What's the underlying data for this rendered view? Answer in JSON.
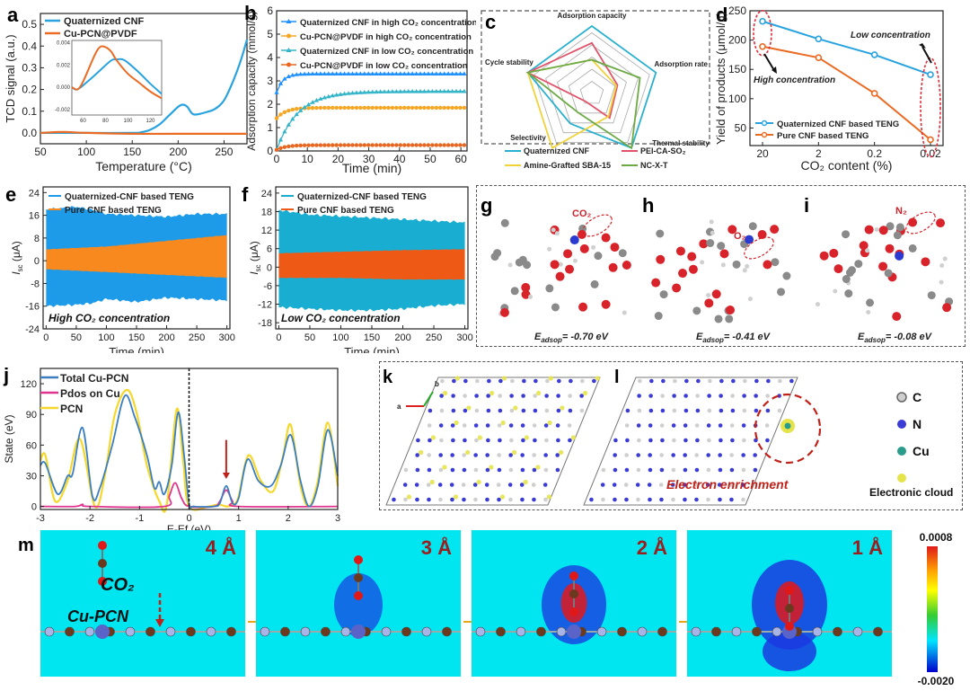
{
  "chart_data": [
    {
      "id": "a",
      "type": "line",
      "panel_label": "a",
      "xlabel": "Temperature (°C)",
      "ylabel": "TCD signal (a.u.)",
      "xlim": [
        50,
        275
      ],
      "ylim": [
        -0.05,
        0.55
      ],
      "xticks": [
        50,
        100,
        150,
        200,
        250
      ],
      "yticks": [
        0.0,
        0.1,
        0.2,
        0.3,
        0.4,
        0.5
      ],
      "legend": "top-left",
      "series": [
        {
          "name": "Quaternized CNF",
          "color": "#29a3e0",
          "x": [
            50,
            100,
            150,
            160,
            170,
            180,
            190,
            200,
            205,
            210,
            215,
            220,
            230,
            240,
            250,
            260,
            268,
            275
          ],
          "y": [
            0.0,
            0.0,
            0.0,
            0.003,
            0.015,
            0.04,
            0.08,
            0.12,
            0.13,
            0.12,
            0.09,
            0.085,
            0.095,
            0.11,
            0.15,
            0.24,
            0.33,
            0.43
          ]
        },
        {
          "name": "Cu-PCN@PVDF",
          "color": "#ea6b24",
          "x": [
            50,
            75,
            100,
            150,
            200,
            275
          ],
          "y": [
            0.0,
            0.004,
            0.0,
            -0.004,
            -0.004,
            -0.004
          ]
        }
      ],
      "inset": {
        "xlim": [
          50,
          130
        ],
        "ylim": [
          -0.0025,
          0.0042
        ],
        "xticks": [
          60,
          80,
          100,
          120
        ],
        "yticks": [
          -0.002,
          0.0,
          0.002,
          0.004
        ],
        "ytick_labels": [
          "-0.002",
          "0.000",
          "0.002",
          "0.004"
        ],
        "series": [
          {
            "name": "Quaternized CNF",
            "color": "#29a3e0",
            "x": [
              50,
              55,
              65,
              75,
              85,
              90,
              95,
              100,
              110,
              120,
              130
            ],
            "y": [
              0.0,
              -0.0002,
              0.0006,
              0.0015,
              0.0024,
              0.0025,
              0.0025,
              0.0022,
              0.0013,
              0.0003,
              -0.0006
            ]
          },
          {
            "name": "Cu-PCN@PVDF",
            "color": "#ea6b24",
            "x": [
              50,
              55,
              60,
              70,
              75,
              80,
              85,
              90,
              100,
              110,
              120,
              130
            ],
            "y": [
              0.0,
              -0.0002,
              0.0005,
              0.0028,
              0.0036,
              0.0036,
              0.0032,
              0.0024,
              0.0012,
              0.0004,
              -0.0004,
              -0.001
            ]
          }
        ]
      }
    },
    {
      "id": "b",
      "type": "line",
      "panel_label": "b",
      "xlabel": "Time (min)",
      "ylabel": "Adsorption capacity (mmol/g)",
      "xlim": [
        0,
        62
      ],
      "ylim": [
        0,
        6
      ],
      "xticks": [
        0,
        10,
        20,
        30,
        40,
        50,
        60
      ],
      "yticks": [
        0,
        1,
        2,
        3,
        4,
        5,
        6
      ],
      "legend": "top",
      "series": [
        {
          "name": "Quaternized CNF in high CO₂ concentration",
          "color": "#1e90ff",
          "marker": "triangle",
          "model": {
            "start": 2.5,
            "end": 3.3,
            "tau": 2.0
          }
        },
        {
          "name": "Cu-PCN@PVDF in high CO₂ concentration",
          "color": "#f5a623",
          "marker": "circle",
          "model": {
            "start": 1.4,
            "end": 1.85,
            "tau": 3.0
          }
        },
        {
          "name": "Quaternized CNF in low CO₂ concentration",
          "color": "#33b5c9",
          "marker": "triangle",
          "model": {
            "start": 0.05,
            "end": 2.55,
            "tau": 7.0
          }
        },
        {
          "name": "Cu-PCN@PVDF in low CO₂ concentration",
          "color": "#e8661f",
          "marker": "circle",
          "model": {
            "start": 0.05,
            "end": 0.25,
            "tau": 3.0
          }
        }
      ]
    },
    {
      "id": "c",
      "type": "radar",
      "panel_label": "c",
      "axes": [
        "Adsorption capacity",
        "Adsorption rate",
        "Thermal stability",
        "Selectivity",
        "Cycle stability"
      ],
      "rings": 5,
      "legend": "bottom",
      "series": [
        {
          "name": "Quaternized CNF",
          "color": "#2ab0cf",
          "values": [
            1.0,
            1.0,
            1.0,
            0.55,
            1.0
          ]
        },
        {
          "name": "PEI-CA-SO₂",
          "color": "#e2536b",
          "values": [
            0.75,
            0.4,
            0.45,
            0.15,
            1.0
          ]
        },
        {
          "name": "Amine-Grafted SBA-15",
          "color": "#f0d23a",
          "values": [
            0.5,
            0.38,
            0.42,
            1.0,
            1.0
          ]
        },
        {
          "name": "NC-X-T",
          "color": "#6daa45",
          "values": [
            0.5,
            0.75,
            1.0,
            0.35,
            1.0
          ]
        }
      ]
    },
    {
      "id": "d",
      "type": "line",
      "panel_label": "d",
      "xlabel": "CO₂ content (%)",
      "ylabel": "Yield of products (μmol/g)",
      "categories": [
        "20",
        "2",
        "0.2",
        "0.02"
      ],
      "ylim": [
        20,
        250
      ],
      "yticks": [
        50,
        100,
        150,
        200,
        250
      ],
      "legend": "bottom-left",
      "series": [
        {
          "name": "Quaternized CNF based TENG",
          "color": "#29a3e0",
          "values": [
            232,
            202,
            175,
            141
          ]
        },
        {
          "name": "Pure CNF based TENG",
          "color": "#ea6b24",
          "values": [
            189,
            170,
            109,
            30
          ]
        }
      ],
      "annotations": [
        "High concentration",
        "Low concentration"
      ]
    },
    {
      "id": "e",
      "type": "area",
      "panel_label": "e",
      "xlabel": "Time (min)",
      "ylabel": "Isc (μA)",
      "xlim": [
        -5,
        305
      ],
      "ylim": [
        -24,
        26
      ],
      "xticks": [
        0,
        50,
        100,
        150,
        200,
        250,
        300
      ],
      "yticks": [
        -24,
        -16,
        -8,
        0,
        8,
        16,
        24
      ],
      "legend": "top-left",
      "annotation": "High CO₂ concentration",
      "series": [
        {
          "name": "Quaternized-CNF based TENG",
          "color": "#1e9be8",
          "x": [
            0,
            50,
            75,
            100,
            150,
            200,
            250,
            300
          ],
          "upper": [
            18,
            19,
            18,
            16.5,
            16,
            15.5,
            16.5,
            16.5
          ],
          "lower": [
            -16,
            -15.5,
            -15,
            -13.5,
            -14.5,
            -13,
            -13.5,
            -14
          ]
        },
        {
          "name": "Pure CNF based TENG",
          "color": "#f7891f",
          "x": [
            0,
            100,
            200,
            300
          ],
          "upper": [
            4,
            5,
            7,
            9
          ],
          "lower": [
            -3,
            -4,
            -5,
            -6
          ]
        }
      ]
    },
    {
      "id": "f",
      "type": "area",
      "panel_label": "f",
      "xlabel": "Time (min)",
      "ylabel": "Isc (μA)",
      "xlim": [
        -5,
        305
      ],
      "ylim": [
        -20,
        26
      ],
      "xticks": [
        0,
        50,
        100,
        150,
        200,
        250,
        300
      ],
      "yticks": [
        -18,
        -12,
        -6,
        0,
        6,
        12,
        18,
        24
      ],
      "legend": "top-left",
      "annotation": "Low CO₂ concentration",
      "series": [
        {
          "name": "Quaternized-CNF based TENG",
          "color": "#19aed1",
          "x": [
            0,
            50,
            100,
            150,
            200,
            250,
            300
          ],
          "upper": [
            18.5,
            17,
            16.5,
            16,
            15.5,
            15,
            14.5
          ],
          "lower": [
            -13,
            -13.5,
            -14,
            -14,
            -13.5,
            -12.5,
            -12
          ]
        },
        {
          "name": "Pure CNF based TENG",
          "color": "#ee5a15",
          "x": [
            0,
            100,
            200,
            300
          ],
          "upper": [
            4.5,
            5,
            5.5,
            5.8
          ],
          "lower": [
            -3.5,
            -3.5,
            -4,
            -4
          ]
        }
      ]
    },
    {
      "id": "j",
      "type": "line",
      "panel_label": "j",
      "xlabel": "E-Ef (eV)",
      "ylabel": "State (eV)",
      "xlim": [
        -3,
        3
      ],
      "ylim": [
        -3,
        135
      ],
      "xticks": [
        -3,
        -2,
        -1,
        0,
        1,
        2,
        3
      ],
      "yticks": [
        0,
        30,
        60,
        90,
        120
      ],
      "legend": "top-left",
      "series": [
        {
          "name": "Total Cu-PCN",
          "color": "#3c7fc0",
          "x": [
            -3,
            -2.9,
            -2.65,
            -2.45,
            -2.35,
            -2.15,
            -1.95,
            -1.8,
            -1.55,
            -1.3,
            -1.1,
            -0.85,
            -0.7,
            -0.6,
            -0.5,
            -0.35,
            -0.22,
            -0.1,
            0,
            0.1,
            0.5,
            0.62,
            0.75,
            0.88,
            1.0,
            1.18,
            1.4,
            1.65,
            1.85,
            2.05,
            2.25,
            2.42,
            2.6,
            2.8,
            3.0
          ],
          "y": [
            40,
            42,
            12,
            30,
            32,
            77,
            10,
            18,
            60,
            108,
            88,
            50,
            18,
            24,
            12,
            40,
            92,
            50,
            3,
            0,
            0,
            3,
            20,
            3,
            8,
            46,
            25,
            20,
            40,
            70,
            25,
            0,
            20,
            75,
            30
          ]
        },
        {
          "name": "Pdos on Cu",
          "color": "#e0338e",
          "x": [
            -3,
            -2.3,
            -2.15,
            -2.0,
            -0.5,
            -0.4,
            -0.28,
            -0.15,
            0,
            0.5,
            0.62,
            0.75,
            0.88,
            1.0,
            3.0
          ],
          "y": [
            0,
            0,
            2,
            0,
            0,
            10,
            23,
            8,
            0,
            0,
            5,
            16,
            5,
            0,
            0
          ]
        },
        {
          "name": "PCN",
          "color": "#f5d82b",
          "x": [
            -3,
            -2.9,
            -2.7,
            -2.45,
            -2.2,
            -1.9,
            -1.7,
            -1.5,
            -1.25,
            -1.05,
            -0.85,
            -0.6,
            -0.45,
            -0.25,
            -0.12,
            0,
            0.4,
            0.6,
            0.75,
            0.9,
            1.0,
            1.2,
            1.45,
            1.7,
            1.9,
            2.05,
            2.25,
            2.42,
            2.6,
            2.8,
            3.0
          ],
          "y": [
            45,
            50,
            5,
            25,
            66,
            0,
            30,
            90,
            114,
            90,
            40,
            5,
            2,
            95,
            45,
            0,
            0,
            2,
            0,
            2,
            10,
            50,
            25,
            15,
            50,
            80,
            20,
            0,
            25,
            82,
            20
          ]
        }
      ],
      "vline_x": 0,
      "arrow_x": 0.75
    },
    {
      "id": "m",
      "type": "heatmap",
      "panel_label": "m",
      "colorbar_max": "0.0008",
      "colorbar_min": "-0.0020",
      "frames": [
        "4 Å",
        "3 Å",
        "2 Å",
        "1 Å"
      ]
    }
  ],
  "molecules": {
    "g": {
      "label": "g",
      "adsorbate": "CO₂",
      "energy_prefix": "E",
      "energy_sub": "adsop",
      "energy_value": "= -0.70 eV"
    },
    "h": {
      "label": "h",
      "adsorbate": "O₂",
      "energy_prefix": "E",
      "energy_sub": "adsop",
      "energy_value": "= -0.41 eV"
    },
    "i": {
      "label": "i",
      "adsorbate": "N₂",
      "energy_prefix": "E",
      "energy_sub": "adsop",
      "energy_value": "= -0.08 eV"
    }
  },
  "structures": {
    "k": {
      "label": "k",
      "axis_a": "a",
      "axis_b": "b"
    },
    "l": {
      "label": "l",
      "annotation": "Electron enrichment"
    },
    "legend": [
      {
        "label": "C",
        "color": "#cfcfcf"
      },
      {
        "label": "N",
        "color": "#3b3bd6"
      },
      {
        "label": "Cu",
        "color": "#2a9c8c"
      },
      {
        "label": "Electronic cloud",
        "color": "#e6e34a"
      }
    ]
  },
  "panel_m": {
    "co2_label": "CO₂",
    "substrate_label": "Cu-PCN"
  }
}
